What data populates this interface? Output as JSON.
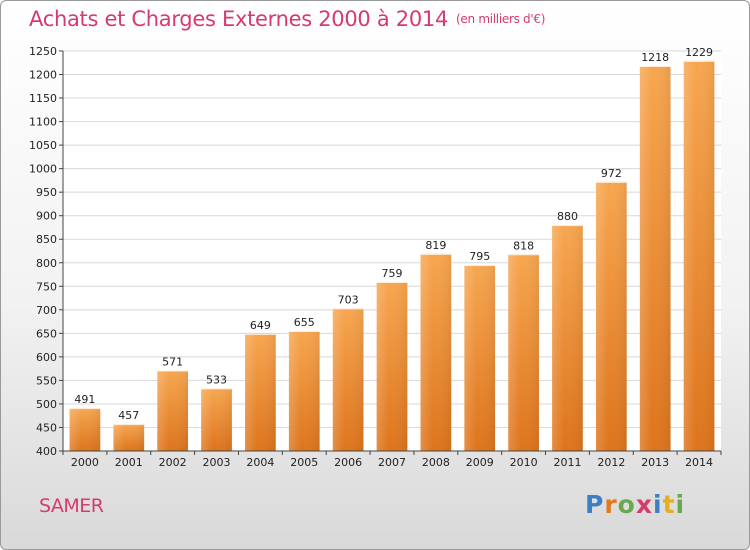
{
  "title": "Achats et Charges Externes 2000 à 2014",
  "subtitle": "(en milliers d'€)",
  "location": "SAMER",
  "logo": {
    "letters": [
      "P",
      "r",
      "o",
      "x",
      "i",
      "t",
      "i"
    ],
    "colors": [
      "#3d7fc4",
      "#e07a1f",
      "#6aa84f",
      "#d63b6c",
      "#3d7fc4",
      "#e0b020",
      "#6aa84f"
    ]
  },
  "chart_data": {
    "type": "bar",
    "categories": [
      "2000",
      "2001",
      "2002",
      "2003",
      "2004",
      "2005",
      "2006",
      "2007",
      "2008",
      "2009",
      "2010",
      "2011",
      "2012",
      "2013",
      "2014"
    ],
    "values": [
      491,
      457,
      571,
      533,
      649,
      655,
      703,
      759,
      819,
      795,
      818,
      880,
      972,
      1218,
      1229
    ],
    "ylim": [
      400,
      1250
    ],
    "yticks": [
      400,
      450,
      500,
      550,
      600,
      650,
      700,
      750,
      800,
      850,
      900,
      950,
      1000,
      1050,
      1100,
      1150,
      1200,
      1250
    ],
    "grid": true,
    "colors": {
      "bar_light": "#f7a650",
      "bar_dark": "#dd741c",
      "grid": "#d8d8d8"
    }
  }
}
